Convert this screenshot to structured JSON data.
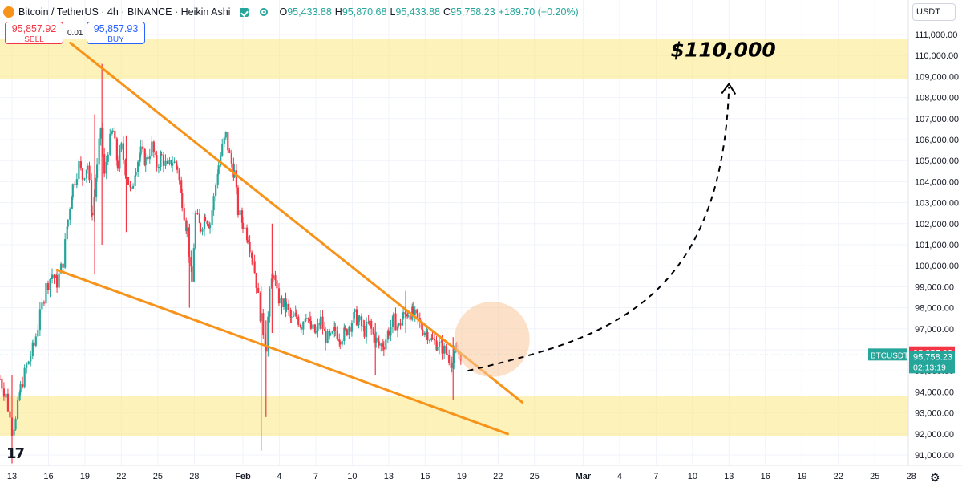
{
  "header": {
    "symbol": "Bitcoin / TetherUS · 4h · BINANCE · Heikin Ashi",
    "ohlc": [
      {
        "k": "O",
        "v": "95,433.88"
      },
      {
        "k": "H",
        "v": "95,870.68"
      },
      {
        "k": "L",
        "v": "95,433.88"
      },
      {
        "k": "C",
        "v": "95,758.23"
      },
      {
        "k": "",
        "v": "+189.70 (+0.20%)"
      }
    ]
  },
  "trade": {
    "sell_price": "95,857.92",
    "sell_label": "SELL",
    "spread": "0.01",
    "buy_price": "95,857.93",
    "buy_label": "BUY"
  },
  "currency": "USDT",
  "tv_logo": "17",
  "colors": {
    "up": "#26a69a",
    "down": "#f23645",
    "trend": "#f7931a",
    "zone": "#fbe98a"
  },
  "chart_data": {
    "type": "candlestick",
    "ylim": [
      90600,
      112000
    ],
    "price_labels": [
      "111,000.00",
      "110,000.00",
      "109,000.00",
      "108,000.00",
      "107,000.00",
      "106,000.00",
      "105,000.00",
      "104,000.00",
      "103,000.00",
      "102,000.00",
      "101,000.00",
      "100,000.00",
      "99,000.00",
      "98,000.00",
      "97,000.00",
      "96,000.00",
      "95,000.00",
      "94,000.00",
      "93,000.00",
      "92,000.00",
      "91,000.00"
    ],
    "price_values": [
      111000,
      110000,
      109000,
      108000,
      107000,
      106000,
      105000,
      104000,
      103000,
      102000,
      101000,
      100000,
      99000,
      98000,
      97000,
      96000,
      95000,
      94000,
      93000,
      92000,
      91000
    ],
    "x_ticks": [
      {
        "label": "13",
        "day": 13
      },
      {
        "label": "16",
        "day": 16
      },
      {
        "label": "19",
        "day": 19
      },
      {
        "label": "22",
        "day": 22
      },
      {
        "label": "25",
        "day": 25
      },
      {
        "label": "28",
        "day": 28
      },
      {
        "label": "Feb",
        "day": 32
      },
      {
        "label": "4",
        "day": 35
      },
      {
        "label": "7",
        "day": 38
      },
      {
        "label": "10",
        "day": 41
      },
      {
        "label": "13",
        "day": 44
      },
      {
        "label": "16",
        "day": 47
      },
      {
        "label": "19",
        "day": 50
      },
      {
        "label": "22",
        "day": 53
      },
      {
        "label": "25",
        "day": 56
      },
      {
        "label": "Mar",
        "day": 60
      },
      {
        "label": "4",
        "day": 63
      },
      {
        "label": "7",
        "day": 66
      },
      {
        "label": "10",
        "day": 69
      },
      {
        "label": "13",
        "day": 72
      },
      {
        "label": "16",
        "day": 75
      },
      {
        "label": "19",
        "day": 78
      },
      {
        "label": "22",
        "day": 81
      },
      {
        "label": "25",
        "day": 84
      },
      {
        "label": "28",
        "day": 87
      }
    ],
    "path_points": [
      [
        12.0,
        94600
      ],
      [
        12.5,
        93800
      ],
      [
        13.0,
        92200
      ],
      [
        13.3,
        92600
      ],
      [
        13.7,
        94200
      ],
      [
        14.2,
        95200
      ],
      [
        14.8,
        96200
      ],
      [
        15.3,
        97600
      ],
      [
        15.8,
        99000
      ],
      [
        16.3,
        99600
      ],
      [
        16.7,
        99200
      ],
      [
        17.2,
        100200
      ],
      [
        17.6,
        102200
      ],
      [
        18.0,
        103800
      ],
      [
        18.5,
        104800
      ],
      [
        18.8,
        104200
      ],
      [
        19.2,
        104800
      ],
      [
        19.6,
        102400
      ],
      [
        20.0,
        104600
      ],
      [
        20.3,
        106600
      ],
      [
        20.6,
        104200
      ],
      [
        20.9,
        105600
      ],
      [
        21.3,
        106400
      ],
      [
        21.7,
        104800
      ],
      [
        22.0,
        105600
      ],
      [
        22.4,
        104400
      ],
      [
        22.8,
        103400
      ],
      [
        23.2,
        104800
      ],
      [
        23.6,
        105400
      ],
      [
        24.0,
        105000
      ],
      [
        24.5,
        105700
      ],
      [
        24.9,
        104800
      ],
      [
        25.3,
        105200
      ],
      [
        25.8,
        104600
      ],
      [
        26.2,
        105000
      ],
      [
        26.6,
        104700
      ],
      [
        27.0,
        103100
      ],
      [
        27.4,
        101700
      ],
      [
        27.8,
        99200
      ],
      [
        28.1,
        102400
      ],
      [
        28.5,
        101800
      ],
      [
        28.9,
        102400
      ],
      [
        29.3,
        102000
      ],
      [
        29.6,
        103200
      ],
      [
        30.0,
        104800
      ],
      [
        30.3,
        105600
      ],
      [
        30.6,
        106200
      ],
      [
        30.9,
        105200
      ],
      [
        31.3,
        104400
      ],
      [
        31.6,
        102600
      ],
      [
        32.0,
        102000
      ],
      [
        32.4,
        101400
      ],
      [
        32.8,
        100400
      ],
      [
        33.1,
        99200
      ],
      [
        33.5,
        97400
      ],
      [
        33.9,
        96200
      ],
      [
        34.2,
        98600
      ],
      [
        34.5,
        99800
      ],
      [
        34.8,
        98600
      ],
      [
        35.2,
        98200
      ],
      [
        35.6,
        98000
      ],
      [
        36.0,
        97400
      ],
      [
        36.4,
        97600
      ],
      [
        36.8,
        97200
      ],
      [
        37.2,
        97800
      ],
      [
        37.6,
        97000
      ],
      [
        38.0,
        96800
      ],
      [
        38.4,
        97400
      ],
      [
        38.8,
        96600
      ],
      [
        39.2,
        96500
      ],
      [
        39.6,
        96900
      ],
      [
        40.0,
        96600
      ],
      [
        40.4,
        96800
      ],
      [
        40.8,
        97200
      ],
      [
        41.2,
        97600
      ],
      [
        41.6,
        97300
      ],
      [
        42.0,
        96900
      ],
      [
        42.4,
        97200
      ],
      [
        42.8,
        96600
      ],
      [
        43.2,
        96200
      ],
      [
        43.6,
        96300
      ],
      [
        44.0,
        96900
      ],
      [
        44.4,
        97400
      ],
      [
        44.8,
        97100
      ],
      [
        45.2,
        97600
      ],
      [
        45.6,
        97800
      ],
      [
        46.0,
        97700
      ],
      [
        46.4,
        97400
      ],
      [
        46.8,
        97000
      ],
      [
        47.2,
        96800
      ],
      [
        47.6,
        96400
      ],
      [
        48.0,
        96300
      ],
      [
        48.4,
        96100
      ],
      [
        48.8,
        95800
      ],
      [
        49.2,
        95400
      ],
      [
        49.6,
        95900
      ],
      [
        50.0,
        95758
      ]
    ],
    "wick_spikes": [
      {
        "day": 13.0,
        "low": 90600,
        "high": 94800
      },
      {
        "day": 20.4,
        "low": 101000,
        "high": 109600
      },
      {
        "day": 19.8,
        "low": 99600,
        "high": 107200
      },
      {
        "day": 22.4,
        "low": 101600,
        "high": 106200
      },
      {
        "day": 27.6,
        "low": 98000,
        "high": 102000
      },
      {
        "day": 33.5,
        "low": 91200,
        "high": 99000
      },
      {
        "day": 33.9,
        "low": 92800,
        "high": 97400
      },
      {
        "day": 34.4,
        "low": 96800,
        "high": 102000
      },
      {
        "day": 42.9,
        "low": 94800,
        "high": 97300
      },
      {
        "day": 45.4,
        "low": 96800,
        "high": 98800
      },
      {
        "day": 49.3,
        "low": 93600,
        "high": 96600
      }
    ],
    "zones": [
      {
        "low": 108900,
        "high": 110800
      },
      {
        "low": 91900,
        "high": 93800
      }
    ],
    "trendlines": [
      {
        "from": [
          17.8,
          110600
        ],
        "to": [
          55.0,
          93500
        ]
      },
      {
        "from": [
          16.7,
          99800
        ],
        "to": [
          53.8,
          92000
        ]
      }
    ],
    "circle": {
      "day": 52.5,
      "price": 96500,
      "radius_days": 3.1
    },
    "projection": {
      "from": [
        50.5,
        95000
      ],
      "to": [
        72.0,
        108500
      ]
    },
    "annotation": "$110,000",
    "last_price": {
      "symbol": "BTCUSDT",
      "price": "95,758.23",
      "timer": "02:13:19",
      "value": 95758.23
    },
    "bid_price": {
      "price": "95,857.93",
      "value": 95857.93
    }
  }
}
